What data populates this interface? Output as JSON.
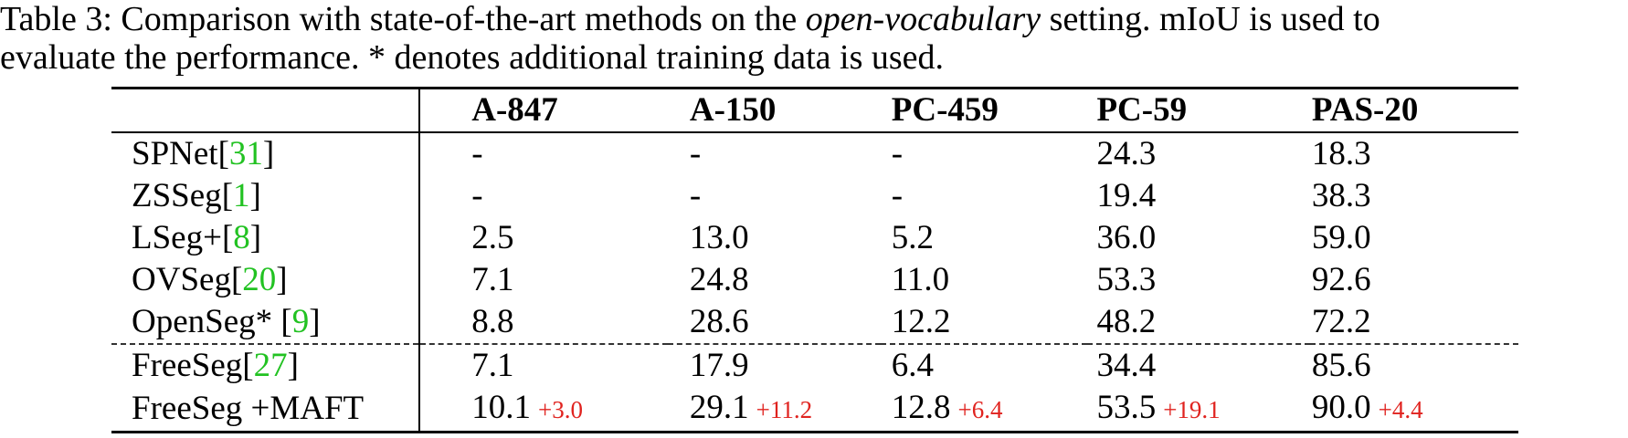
{
  "caption": {
    "line1_pre": "Table 3: Comparison with state-of-the-art methods on the ",
    "line1_em": "open-vocabulary",
    "line1_post": " setting. mIoU is used to",
    "line2": "evaluate the performance. * denotes additional training data is used."
  },
  "columns": [
    "",
    "A-847",
    "A-150",
    "PC-459",
    "PC-59",
    "PAS-20"
  ],
  "rows": [
    {
      "method": "SPNet",
      "ref": "31",
      "vals": [
        "-",
        "-",
        "-",
        "24.3",
        "18.3"
      ]
    },
    {
      "method": "ZSSeg",
      "ref": "1",
      "vals": [
        "-",
        "-",
        "-",
        "19.4",
        "38.3"
      ]
    },
    {
      "method": "LSeg+",
      "ref": "8",
      "vals": [
        "2.5",
        "13.0",
        "5.2",
        "36.0",
        "59.0"
      ]
    },
    {
      "method": "OVSeg",
      "ref": "20",
      "vals": [
        "7.1",
        "24.8",
        "11.0",
        "53.3",
        "92.6"
      ]
    },
    {
      "method": "OpenSeg* ",
      "ref": "9",
      "vals": [
        "8.8",
        "28.6",
        "12.2",
        "48.2",
        "72.2"
      ]
    },
    {
      "method": "FreeSeg",
      "ref": "27",
      "vals": [
        "7.1",
        "17.9",
        "6.4",
        "34.4",
        "85.6"
      ]
    },
    {
      "method": "FreeSeg +MAFT",
      "ref": "",
      "vals": [
        "10.1",
        "29.1",
        "12.8",
        "53.5",
        "90.0"
      ],
      "deltas": [
        "+3.0",
        "+11.2",
        "+6.4",
        "+19.1",
        "+4.4"
      ]
    }
  ],
  "colors": {
    "ref": "#22c222",
    "delta": "#e0231f"
  }
}
